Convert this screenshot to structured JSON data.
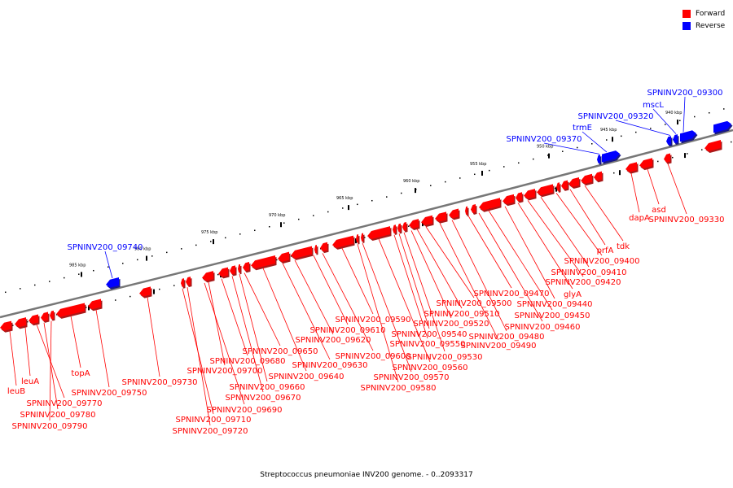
{
  "legend": {
    "forward_label": "Forward",
    "reverse_label": "Reverse"
  },
  "colors": {
    "forward": "#ff0000",
    "reverse": "#0000ff",
    "backbone": "#777777"
  },
  "caption": "Streptococcus pneumoniae INV200 genome. - 0..2093317",
  "ticks": [
    "985 kbp",
    "980 kbp",
    "975 kbp",
    "970 kbp",
    "965 kbp",
    "960 kbp",
    "955 kbp",
    "950 kbp",
    "945 kbp",
    "940 kbp"
  ],
  "forward_labels": [
    "leuA",
    "leuB",
    "SPNINV200_09770",
    "SPNINV200_09780",
    "SPNINV200_09790",
    "topA",
    "SPNINV200_09750",
    "SPNINV200_09730",
    "SPNINV200_09710",
    "SPNINV200_09720",
    "SPNINV200_09690",
    "SPNINV200_09700",
    "SPNINV200_09680",
    "SPNINV200_09670",
    "SPNINV200_09660",
    "SPNINV200_09650",
    "SPNINV200_09640",
    "SPNINV200_09630",
    "SPNINV200_09620",
    "SPNINV200_09610",
    "SPNINV200_09600",
    "SPNINV200_09590",
    "SPNINV200_09580",
    "SPNINV200_09570",
    "SPNINV200_09560",
    "SPNINV200_09550",
    "SPNINV200_09540",
    "SPNINV200_09530",
    "SPNINV200_09520",
    "SPNINV200_09510",
    "SPNINV200_09500",
    "SPNINV200_09490",
    "SPNINV200_09480",
    "SPNINV200_09470",
    "SPNINV200_09460",
    "SPNINV200_09450",
    "SPNINV200_09440",
    "glyA",
    "SPNINV200_09420",
    "SPNINV200_09410",
    "SPNINV200_09400",
    "prfA",
    "tdk",
    "dapA",
    "asd",
    "SPNINV200_09330"
  ],
  "reverse_labels": [
    "SPNINV200_09740",
    "SPNINV200_09370",
    "trmE",
    "SPNINV200_09320",
    "mscL",
    "SPNINV200_09300"
  ]
}
